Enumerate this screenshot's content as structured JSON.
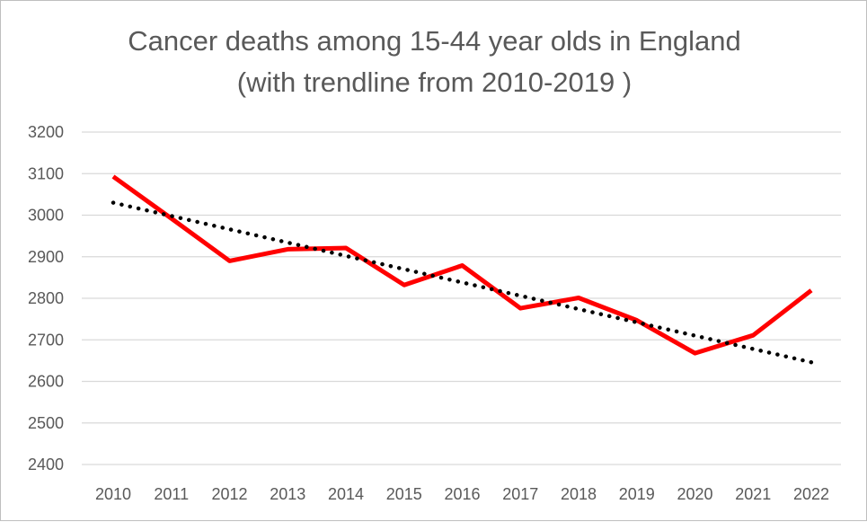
{
  "chart_data": {
    "type": "line",
    "title": "Cancer deaths among 15-44 year olds in England",
    "subtitle": "(with trendline from 2010-2019 )",
    "xlabel": "",
    "ylabel": "",
    "categories": [
      "2010",
      "2011",
      "2012",
      "2013",
      "2014",
      "2015",
      "2016",
      "2017",
      "2018",
      "2019",
      "2020",
      "2021",
      "2022"
    ],
    "ylim": [
      2400,
      3200
    ],
    "yticks": [
      2400,
      2500,
      2600,
      2700,
      2800,
      2900,
      3000,
      3100,
      3200
    ],
    "grid": true,
    "legend": "none",
    "series": [
      {
        "values": [
          3093,
          2992,
          2890,
          2918,
          2921,
          2832,
          2879,
          2776,
          2801,
          2747,
          2668,
          2711,
          2819
        ],
        "color": "#ff0000",
        "style": "solid"
      },
      {
        "values": [
          3030,
          2998,
          2966,
          2934,
          2902,
          2870,
          2838,
          2806,
          2774,
          2742,
          2710,
          2678,
          2646
        ],
        "color": "#000000",
        "style": "dotted"
      }
    ]
  }
}
